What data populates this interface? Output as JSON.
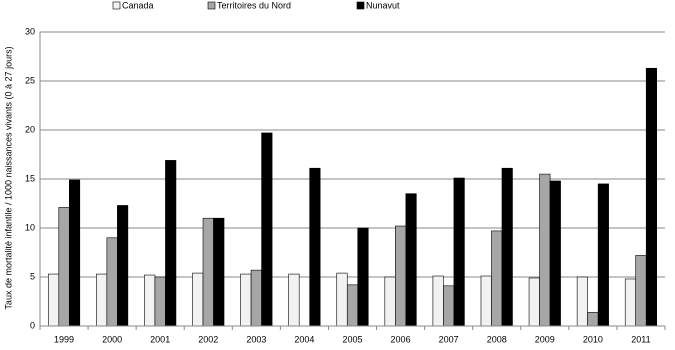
{
  "chart_data": {
    "type": "bar",
    "y_label": "Taux de mortalité infantile / 1000 naissances vivants (0 à 27 jours)",
    "categories": [
      "1999",
      "2000",
      "2001",
      "2002",
      "2003",
      "2004",
      "2005",
      "2006",
      "2007",
      "2008",
      "2009",
      "2010",
      "2011"
    ],
    "series": [
      {
        "name": "Canada",
        "color": "#f2f2f2",
        "values": [
          5.3,
          5.3,
          5.2,
          5.4,
          5.3,
          5.3,
          5.4,
          5.0,
          5.1,
          5.1,
          4.9,
          5.0,
          4.8
        ]
      },
      {
        "name": "Territoires du Nord",
        "color": "#a6a6a6",
        "values": [
          12.1,
          9.0,
          5.0,
          11.0,
          5.7,
          null,
          4.2,
          10.2,
          4.1,
          9.7,
          15.5,
          1.4,
          7.2
        ]
      },
      {
        "name": "Nunavut",
        "color": "#000000",
        "values": [
          14.9,
          12.3,
          16.9,
          11.0,
          19.7,
          16.1,
          10.0,
          13.5,
          15.1,
          16.1,
          14.8,
          14.5,
          26.3
        ]
      }
    ],
    "ylim": [
      0,
      30
    ],
    "yticks": [
      0,
      5,
      10,
      15,
      20,
      25,
      30
    ],
    "grid": true
  }
}
